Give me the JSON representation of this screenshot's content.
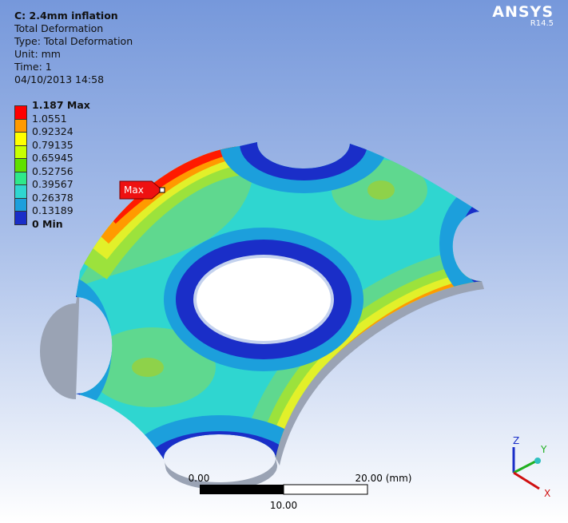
{
  "header": {
    "title": "C: 2.4mm inflation",
    "lines": [
      "Total Deformation",
      "Type: Total Deformation",
      "Unit: mm",
      "Time: 1",
      "04/10/2013 14:58"
    ]
  },
  "legend": {
    "labels": [
      "1.187 Max",
      "1.0551",
      "0.92324",
      "0.79135",
      "0.65945",
      "0.52756",
      "0.39567",
      "0.26378",
      "0.13189",
      "0 Min"
    ],
    "colors": [
      "#ff0000",
      "#ff9a00",
      "#ffff00",
      "#c8ff00",
      "#5fe000",
      "#2ee88a",
      "#2fd6d0",
      "#1c9fdc",
      "#1a2ec8"
    ]
  },
  "probe": "Max",
  "logo": {
    "name": "ANSYS",
    "version": "R14.5"
  },
  "scale": {
    "start": "0.00",
    "end": "20.00 (mm)",
    "mid": "10.00"
  },
  "triad": {
    "x": "X",
    "y": "Y",
    "z": "Z"
  }
}
